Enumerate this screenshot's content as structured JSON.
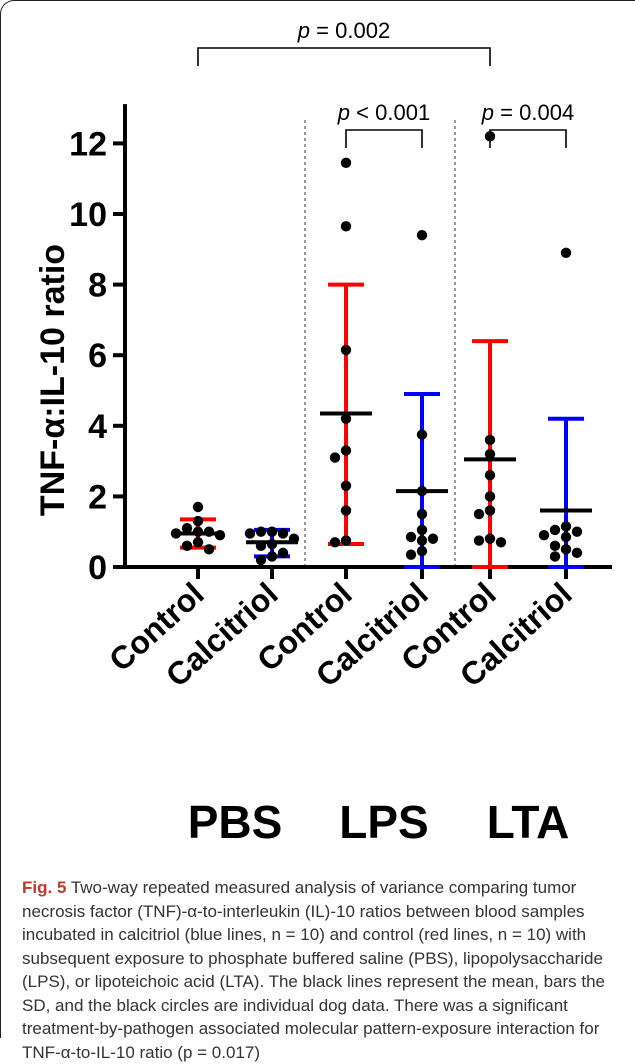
{
  "figure": {
    "label": "Fig. 5",
    "caption": "Two-way repeated measured analysis of variance comparing tumor necrosis factor (TNF)-α-to-interleukin (IL)-10 ratios between blood samples incubated in calcitriol (blue lines, n = 10) and control (red lines, n = 10) with subsequent exposure to phosphate buffered saline (PBS), lipopolysaccharide (LPS), or lipoteichoic acid (LTA). The black lines represent the mean, bars the SD, and the black circles are individual dog data. There was a significant treatment-by-pathogen associated molecular pattern-exposure interaction for TNF-α-to-IL-10 ratio (p = 0.017)"
  },
  "chart_data": {
    "type": "scatter",
    "ylabel": "TNF-α:IL-10 ratio",
    "ylim": [
      0,
      13
    ],
    "yticks": [
      0,
      2,
      4,
      6,
      8,
      10,
      12
    ],
    "categories": [
      "Control",
      "Calcitriol",
      "Control",
      "Calcitriol",
      "Control",
      "Calcitriol"
    ],
    "group_labels": [
      "PBS",
      "LPS",
      "LTA"
    ],
    "colors": {
      "control": "#ff0000",
      "calcitriol": "#0000ff",
      "mean": "#000000",
      "points": "#000000"
    },
    "series": [
      {
        "group": "PBS",
        "treatment": "Control",
        "color": "#ff0000",
        "mean": 0.95,
        "sd_low": 0.55,
        "sd_high": 1.35,
        "points": [
          1.7,
          1.3,
          1.1,
          1.0,
          1.0,
          0.95,
          0.9,
          0.7,
          0.6,
          0.5
        ]
      },
      {
        "group": "PBS",
        "treatment": "Calcitriol",
        "color": "#0000ff",
        "mean": 0.7,
        "sd_low": 0.3,
        "sd_high": 1.05,
        "points": [
          1.0,
          1.0,
          0.95,
          0.95,
          0.8,
          0.65,
          0.6,
          0.4,
          0.3,
          0.2
        ]
      },
      {
        "group": "LPS",
        "treatment": "Control",
        "color": "#ff0000",
        "mean": 4.35,
        "sd_low": 0.65,
        "sd_high": 8.0,
        "points": [
          11.45,
          9.65,
          6.15,
          4.2,
          3.3,
          3.1,
          2.3,
          1.6,
          0.75,
          0.7
        ]
      },
      {
        "group": "LPS",
        "treatment": "Calcitriol",
        "color": "#0000ff",
        "mean": 2.15,
        "sd_low": 0.0,
        "sd_high": 4.9,
        "points": [
          9.4,
          3.75,
          2.15,
          1.5,
          1.05,
          0.85,
          0.8,
          0.75,
          0.45,
          0.35
        ]
      },
      {
        "group": "LTA",
        "treatment": "Control",
        "color": "#ff0000",
        "mean": 3.05,
        "sd_low": 0.0,
        "sd_high": 6.4,
        "points": [
          12.2,
          3.6,
          3.2,
          2.6,
          2.0,
          1.6,
          1.5,
          0.8,
          0.75,
          0.7
        ]
      },
      {
        "group": "LTA",
        "treatment": "Calcitriol",
        "color": "#0000ff",
        "mean": 1.6,
        "sd_low": 0.0,
        "sd_high": 4.2,
        "points": [
          8.9,
          1.15,
          1.05,
          1.0,
          0.9,
          0.85,
          0.6,
          0.5,
          0.4,
          0.3
        ]
      }
    ],
    "annotations": [
      {
        "text_prefix": "p",
        "text_suffix": " = 0.002",
        "from": 0,
        "to": 4
      },
      {
        "text_prefix": "p",
        "text_suffix": " < 0.001",
        "from": 2,
        "to": 3
      },
      {
        "text_prefix": "p",
        "text_suffix": " = 0.004",
        "from": 4,
        "to": 5
      }
    ]
  }
}
